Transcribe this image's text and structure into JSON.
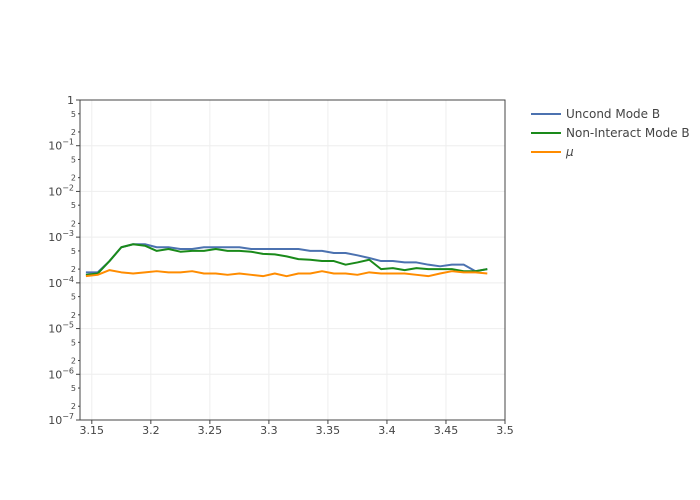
{
  "chart_data": {
    "type": "line",
    "title": "",
    "xlabel": "",
    "ylabel": "",
    "xscale": "linear",
    "yscale": "log",
    "xlim": [
      3.14,
      3.5
    ],
    "ylim": [
      1e-07,
      1
    ],
    "legend_position": "top-right",
    "grid": true,
    "x_ticks": [
      {
        "value": 3.15,
        "label": "3.15"
      },
      {
        "value": 3.2,
        "label": "3.2"
      },
      {
        "value": 3.25,
        "label": "3.25"
      },
      {
        "value": 3.3,
        "label": "3.3"
      },
      {
        "value": 3.35,
        "label": "3.35"
      },
      {
        "value": 3.4,
        "label": "3.4"
      },
      {
        "value": 3.45,
        "label": "3.45"
      },
      {
        "value": 3.5,
        "label": "3.5"
      }
    ],
    "y_ticks": [
      {
        "value": 1,
        "base": "1",
        "exp": ""
      },
      {
        "value": 0.1,
        "base": "10",
        "exp": "−1"
      },
      {
        "value": 0.01,
        "base": "10",
        "exp": "−2"
      },
      {
        "value": 0.001,
        "base": "10",
        "exp": "−3"
      },
      {
        "value": 0.0001,
        "base": "10",
        "exp": "−4"
      },
      {
        "value": 1e-05,
        "base": "10",
        "exp": "−5"
      },
      {
        "value": 1e-06,
        "base": "10",
        "exp": "−6"
      },
      {
        "value": 1e-07,
        "base": "10",
        "exp": "−7"
      }
    ],
    "y_minor_ticks": [
      {
        "value": 0.5,
        "label": "5"
      },
      {
        "value": 0.2,
        "label": "2"
      },
      {
        "value": 0.05,
        "label": "5"
      },
      {
        "value": 0.02,
        "label": "2"
      },
      {
        "value": 0.005,
        "label": "5"
      },
      {
        "value": 0.002,
        "label": "2"
      },
      {
        "value": 0.0005,
        "label": "5"
      },
      {
        "value": 0.0002,
        "label": "2"
      },
      {
        "value": 5e-05,
        "label": "5"
      },
      {
        "value": 2e-05,
        "label": "2"
      },
      {
        "value": 5e-06,
        "label": "5"
      },
      {
        "value": 2e-06,
        "label": "2"
      },
      {
        "value": 5e-07,
        "label": "5"
      },
      {
        "value": 2e-07,
        "label": "2"
      }
    ],
    "x": [
      3.145,
      3.155,
      3.165,
      3.175,
      3.185,
      3.195,
      3.205,
      3.215,
      3.225,
      3.235,
      3.245,
      3.255,
      3.265,
      3.275,
      3.285,
      3.295,
      3.305,
      3.315,
      3.325,
      3.335,
      3.345,
      3.355,
      3.365,
      3.375,
      3.385,
      3.395,
      3.405,
      3.415,
      3.425,
      3.435,
      3.445,
      3.455,
      3.465,
      3.475,
      3.485
    ],
    "series": [
      {
        "name": "Uncond Mode B",
        "color": "#4c72b0",
        "values": [
          0.00017,
          0.00017,
          0.0003,
          0.0006,
          0.0007,
          0.0007,
          0.0006,
          0.0006,
          0.00055,
          0.00055,
          0.0006,
          0.0006,
          0.0006,
          0.0006,
          0.00055,
          0.00055,
          0.00055,
          0.00055,
          0.00055,
          0.0005,
          0.0005,
          0.00045,
          0.00045,
          0.0004,
          0.00035,
          0.0003,
          0.0003,
          0.00028,
          0.00028,
          0.00025,
          0.00023,
          0.00025,
          0.00025,
          0.00018,
          0.0002
        ]
      },
      {
        "name": "Non-Interact Mode B",
        "color": "#1a8a1a",
        "values": [
          0.00015,
          0.00016,
          0.0003,
          0.0006,
          0.0007,
          0.00065,
          0.0005,
          0.00055,
          0.00048,
          0.0005,
          0.0005,
          0.00055,
          0.0005,
          0.0005,
          0.00048,
          0.00043,
          0.00042,
          0.00038,
          0.00033,
          0.00032,
          0.0003,
          0.0003,
          0.00025,
          0.00028,
          0.00032,
          0.0002,
          0.00021,
          0.00019,
          0.00021,
          0.0002,
          0.0002,
          0.0002,
          0.00018,
          0.00018,
          0.0002
        ]
      },
      {
        "name": "μ",
        "color": "#ff8c00",
        "values": [
          0.00014,
          0.00015,
          0.00019,
          0.00017,
          0.00016,
          0.00017,
          0.00018,
          0.00017,
          0.00017,
          0.00018,
          0.00016,
          0.00016,
          0.00015,
          0.00016,
          0.00015,
          0.00014,
          0.00016,
          0.00014,
          0.00016,
          0.00016,
          0.00018,
          0.00016,
          0.00016,
          0.00015,
          0.00017,
          0.00016,
          0.00016,
          0.00016,
          0.00015,
          0.00014,
          0.00016,
          0.00018,
          0.00017,
          0.00017,
          0.00016
        ]
      }
    ]
  }
}
